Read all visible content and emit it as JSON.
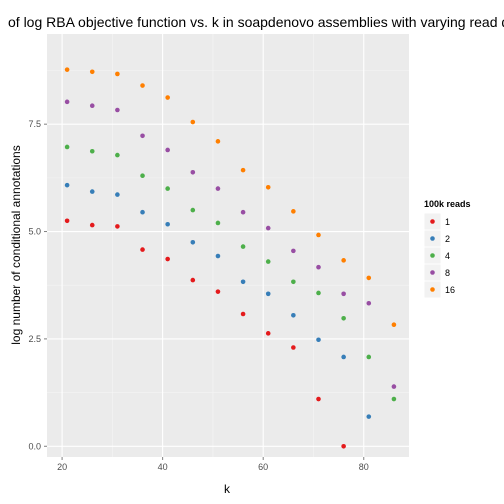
{
  "chart_data": {
    "type": "scatter",
    "title": "of log RBA objective function vs. k in soapdenovo assemblies with varying read d",
    "xlabel": "k",
    "ylabel": "log number of conditional annotations",
    "xlim": [
      17,
      89
    ],
    "ylim": [
      -0.25,
      9.6
    ],
    "x_ticks": [
      20,
      40,
      60,
      80
    ],
    "y_ticks": [
      0.0,
      2.5,
      5.0,
      7.5
    ],
    "x_tick_labels": [
      "20",
      "40",
      "60",
      "80"
    ],
    "y_tick_labels": [
      "0.0",
      "2.5",
      "5.0",
      "7.5"
    ],
    "grid": true,
    "legend": {
      "title": "100k reads",
      "position": "right"
    },
    "series": [
      {
        "name": "1",
        "color": "#E41A1C",
        "x": [
          21,
          26,
          31,
          36,
          41,
          46,
          51,
          56,
          61,
          66,
          71,
          76
        ],
        "y": [
          5.25,
          5.15,
          5.12,
          4.58,
          4.36,
          3.87,
          3.6,
          3.08,
          2.63,
          2.3,
          1.1,
          0.0
        ]
      },
      {
        "name": "2",
        "color": "#377EB8",
        "x": [
          21,
          26,
          31,
          36,
          41,
          46,
          51,
          56,
          61,
          66,
          71,
          76,
          81
        ],
        "y": [
          6.08,
          5.93,
          5.86,
          5.45,
          5.17,
          4.75,
          4.43,
          3.83,
          3.55,
          3.05,
          2.48,
          2.08,
          0.69
        ]
      },
      {
        "name": "4",
        "color": "#4DAF4A",
        "x": [
          21,
          26,
          31,
          36,
          41,
          46,
          51,
          56,
          61,
          66,
          71,
          76,
          81,
          86
        ],
        "y": [
          6.97,
          6.87,
          6.78,
          6.3,
          6.0,
          5.5,
          5.2,
          4.65,
          4.3,
          3.83,
          3.57,
          2.98,
          2.08,
          1.1
        ]
      },
      {
        "name": "8",
        "color": "#984EA3",
        "x": [
          21,
          26,
          31,
          36,
          41,
          46,
          51,
          56,
          61,
          66,
          71,
          76,
          81,
          86
        ],
        "y": [
          8.02,
          7.93,
          7.83,
          7.23,
          6.9,
          6.38,
          6.0,
          5.45,
          5.08,
          4.55,
          4.17,
          3.55,
          3.33,
          1.39
        ]
      },
      {
        "name": "16",
        "color": "#FF7F00",
        "x": [
          21,
          26,
          31,
          36,
          41,
          46,
          51,
          56,
          61,
          66,
          71,
          76,
          81,
          86
        ],
        "y": [
          8.77,
          8.72,
          8.67,
          8.4,
          8.12,
          7.55,
          7.1,
          6.43,
          6.03,
          5.47,
          4.92,
          4.33,
          3.92,
          2.83
        ]
      }
    ]
  }
}
